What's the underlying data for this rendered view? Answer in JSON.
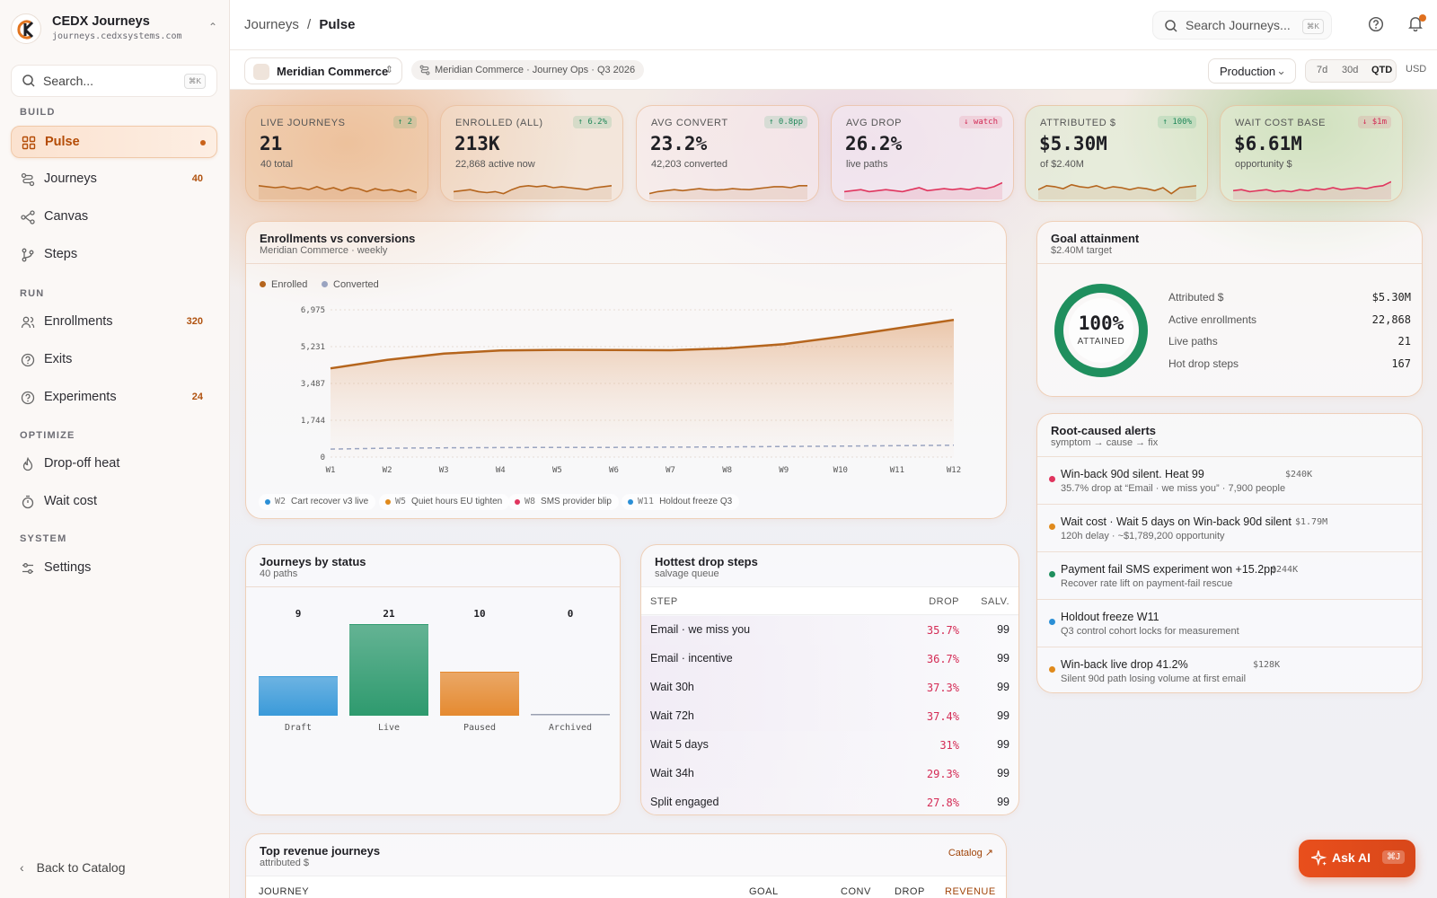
{
  "brand": {
    "name": "CEDX Journeys",
    "url": "journeys.cedxsystems.com"
  },
  "sidebar": {
    "search_placeholder": "Search...",
    "search_kbd": "⌘K",
    "sections": {
      "build": "BUILD",
      "run": "RUN",
      "optimize": "OPTIMIZE",
      "system": "SYSTEM"
    },
    "items": {
      "pulse": {
        "label": "Pulse"
      },
      "journeys": {
        "label": "Journeys",
        "count": "40"
      },
      "canvas": {
        "label": "Canvas"
      },
      "steps": {
        "label": "Steps"
      },
      "enrollments": {
        "label": "Enrollments",
        "count": "320"
      },
      "exits": {
        "label": "Exits"
      },
      "experiments": {
        "label": "Experiments",
        "count": "24"
      },
      "dropoff": {
        "label": "Drop-off heat"
      },
      "waitcost": {
        "label": "Wait cost"
      },
      "settings": {
        "label": "Settings"
      }
    },
    "back": "Back to Catalog"
  },
  "header": {
    "crumb_parent": "Journeys",
    "crumb_sep": "/",
    "crumb_current": "Pulse",
    "search_placeholder": "Search Journeys...",
    "search_kbd": "⌘K"
  },
  "subbar": {
    "workspace": "Meridian Commerce",
    "context": "Meridian Commerce · Journey Ops · Q3 2026",
    "environment": "Production",
    "ranges": [
      "7d",
      "30d",
      "QTD"
    ],
    "active_range": "QTD",
    "currency": "USD"
  },
  "kpis": [
    {
      "label": "LIVE JOURNEYS",
      "badge": "↑ 2",
      "trend": "up",
      "value": "21",
      "sub": "40 total",
      "spark": [
        0.6,
        0.55,
        0.5,
        0.55,
        0.45,
        0.5,
        0.4,
        0.55,
        0.4,
        0.5,
        0.35,
        0.5,
        0.45,
        0.3,
        0.45,
        0.35,
        0.4,
        0.3,
        0.4,
        0.25
      ],
      "color": "#b5651d"
    },
    {
      "label": "ENROLLED (ALL)",
      "badge": "↑ 6.2%",
      "trend": "up",
      "value": "213K",
      "sub": "22,868 active now",
      "spark": [
        0.3,
        0.35,
        0.4,
        0.3,
        0.25,
        0.3,
        0.2,
        0.4,
        0.55,
        0.6,
        0.55,
        0.6,
        0.5,
        0.55,
        0.5,
        0.45,
        0.4,
        0.5,
        0.55,
        0.6
      ],
      "color": "#b5651d"
    },
    {
      "label": "AVG CONVERT",
      "badge": "↑ 0.8pp",
      "trend": "up",
      "value": "23.2%",
      "sub": "42,203 converted",
      "spark": [
        0.2,
        0.3,
        0.35,
        0.4,
        0.35,
        0.4,
        0.45,
        0.4,
        0.38,
        0.4,
        0.45,
        0.42,
        0.4,
        0.45,
        0.5,
        0.55,
        0.55,
        0.5,
        0.6,
        0.6
      ],
      "color": "#b5651d"
    },
    {
      "label": "AVG DROP",
      "badge": "↓ watch",
      "trend": "down",
      "value": "26.2%",
      "sub": "live paths",
      "spark": [
        0.3,
        0.35,
        0.4,
        0.3,
        0.35,
        0.4,
        0.35,
        0.3,
        0.4,
        0.5,
        0.35,
        0.4,
        0.45,
        0.4,
        0.45,
        0.4,
        0.5,
        0.45,
        0.55,
        0.75
      ],
      "color": "#e0355e"
    },
    {
      "label": "ATTRIBUTED $",
      "badge": "↑ 100%",
      "trend": "up",
      "value": "$5.30M",
      "sub": "of $2.40M",
      "spark": [
        0.4,
        0.6,
        0.55,
        0.45,
        0.65,
        0.55,
        0.5,
        0.6,
        0.45,
        0.55,
        0.5,
        0.4,
        0.5,
        0.45,
        0.35,
        0.5,
        0.2,
        0.5,
        0.55,
        0.6
      ],
      "color": "#b5651d"
    },
    {
      "label": "WAIT COST BASE",
      "badge": "↓ $1m",
      "trend": "down",
      "value": "$6.61M",
      "sub": "opportunity $",
      "spark": [
        0.35,
        0.4,
        0.3,
        0.35,
        0.4,
        0.3,
        0.35,
        0.3,
        0.4,
        0.35,
        0.45,
        0.4,
        0.5,
        0.4,
        0.45,
        0.5,
        0.45,
        0.55,
        0.6,
        0.8
      ],
      "color": "#e0355e"
    }
  ],
  "enroll_card": {
    "title": "Enrollments vs conversions",
    "subtitle": "Meridian Commerce · weekly",
    "legend_enrolled": "Enrolled",
    "legend_converted": "Converted",
    "events": [
      {
        "week": "W2",
        "label": "Cart recover v3 live",
        "color": "#2b8fd6"
      },
      {
        "week": "W5",
        "label": "Quiet hours EU tighten",
        "color": "#e08a1c"
      },
      {
        "week": "W8",
        "label": "SMS provider blip",
        "color": "#e0355e"
      },
      {
        "week": "W11",
        "label": "Holdout freeze Q3",
        "color": "#2b8fd6"
      }
    ]
  },
  "chart_data": {
    "type": "area",
    "x": [
      "W1",
      "W2",
      "W3",
      "W4",
      "W5",
      "W6",
      "W7",
      "W8",
      "W9",
      "W10",
      "W11",
      "W12"
    ],
    "y_ticks": [
      "0",
      "1,744",
      "3,487",
      "5,231",
      "6,975"
    ],
    "ylim": [
      0,
      6975
    ],
    "series": [
      {
        "name": "Enrolled",
        "values": [
          4200,
          4600,
          4900,
          5050,
          5080,
          5070,
          5060,
          5150,
          5350,
          5700,
          6100,
          6500
        ],
        "color": "#b5651d"
      },
      {
        "name": "Converted",
        "values": [
          380,
          420,
          440,
          450,
          460,
          460,
          470,
          480,
          500,
          520,
          540,
          560
        ],
        "color": "#9aa4c0"
      }
    ]
  },
  "goal": {
    "title": "Goal attainment",
    "subtitle": "$2.40M target",
    "percent": "100%",
    "percent_label": "ATTAINED",
    "fill": 1.0,
    "rows": [
      {
        "label": "Attributed $",
        "value": "$5.30M"
      },
      {
        "label": "Active enrollments",
        "value": "22,868"
      },
      {
        "label": "Live paths",
        "value": "21"
      },
      {
        "label": "Hot drop steps",
        "value": "167"
      }
    ]
  },
  "alerts": {
    "title": "Root-caused alerts",
    "subtitle": "symptom → cause → fix",
    "items": [
      {
        "title": "Win-back 90d silent. Heat 99",
        "amount": "$240K",
        "sub": "35.7% drop at “Email · we miss you” · 7,900 people",
        "color": "#e0355e"
      },
      {
        "title": "Wait cost · Wait 5 days on Win-back 90d silent",
        "amount": "$1.79M",
        "sub": "120h delay · ~$1,789,200 opportunity",
        "color": "#e08a1c"
      },
      {
        "title": "Payment fail SMS experiment won +15.2pp",
        "amount": "$244K",
        "sub": "Recover rate lift on payment-fail rescue",
        "color": "#1f8f5e"
      },
      {
        "title": "Holdout freeze W11",
        "amount": "",
        "sub": "Q3 control cohort locks for measurement",
        "color": "#2b8fd6"
      },
      {
        "title": "Win-back live drop 41.2%",
        "amount": "$128K",
        "sub": "Silent 90d path losing volume at first email",
        "color": "#e08a1c"
      }
    ]
  },
  "status_card": {
    "title": "Journeys by status",
    "subtitle": "40 paths",
    "bars": [
      {
        "label": "Draft",
        "value": 9,
        "color": "#3a9ad9"
      },
      {
        "label": "Live",
        "value": 21,
        "color": "#2e9a6e"
      },
      {
        "label": "Paused",
        "value": 10,
        "color": "#e58a30"
      },
      {
        "label": "Archived",
        "value": 0,
        "color": "#9aa0b0"
      }
    ]
  },
  "drop_card": {
    "title": "Hottest drop steps",
    "subtitle": "salvage queue",
    "col_step": "STEP",
    "col_drop": "DROP",
    "col_salv": "SALV.",
    "rows": [
      {
        "step": "Email · we miss you",
        "drop": "35.7%",
        "salv": "99",
        "heat": 0.36
      },
      {
        "step": "Email · incentive",
        "drop": "36.7%",
        "salv": "99",
        "heat": 0.37
      },
      {
        "step": "Wait 30h",
        "drop": "37.3%",
        "salv": "99",
        "heat": 0.37
      },
      {
        "step": "Wait 72h",
        "drop": "37.4%",
        "salv": "99",
        "heat": 0.37
      },
      {
        "step": "Wait 5 days",
        "drop": "31%",
        "salv": "99",
        "heat": 0.31
      },
      {
        "step": "Wait 34h",
        "drop": "29.3%",
        "salv": "99",
        "heat": 0.29
      },
      {
        "step": "Split engaged",
        "drop": "27.8%",
        "salv": "99",
        "heat": 0.28
      }
    ]
  },
  "revenue_card": {
    "title": "Top revenue journeys",
    "subtitle": "attributed $",
    "link": "Catalog ↗",
    "cols": {
      "journey": "JOURNEY",
      "goal": "GOAL",
      "conv": "CONV",
      "drop": "DROP",
      "revenue": "REVENUE"
    }
  },
  "ask_ai": {
    "label": "Ask AI",
    "kbd": "⌘J"
  }
}
